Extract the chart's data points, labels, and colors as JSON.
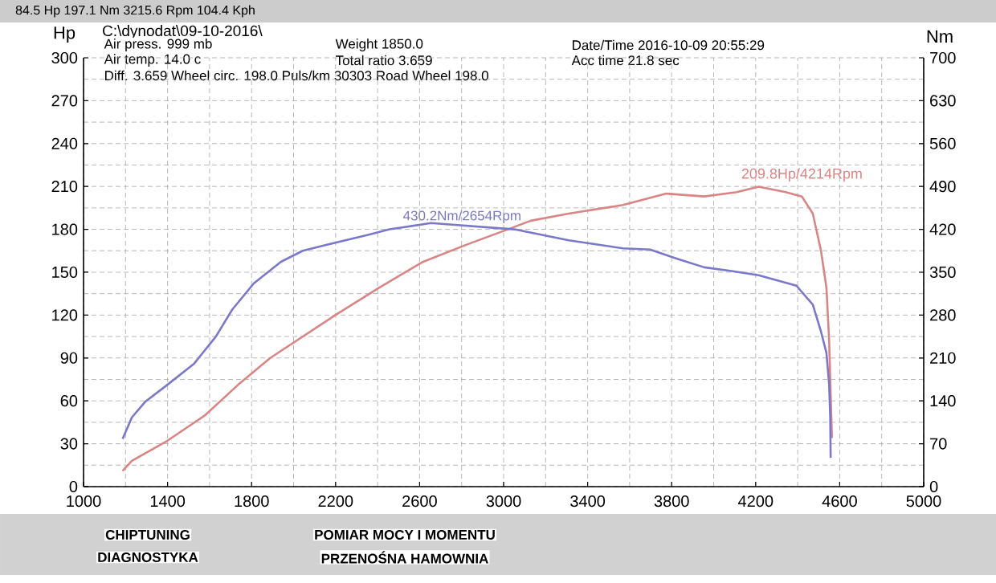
{
  "chart_data": {
    "type": "line",
    "title": "C:\\dynodat\\09-10-2016\\",
    "subtitle": "84.5 Hp 197.1 Nm 3215.6 Rpm 104.4 Kph",
    "ylabel": "Hp",
    "y2label": "Nm",
    "xlim": [
      1000,
      5000
    ],
    "xticks": [
      1000,
      1400,
      1800,
      2200,
      2600,
      3000,
      3400,
      3800,
      4200,
      4600,
      5000
    ],
    "ylim": [
      0,
      300
    ],
    "yticks": [
      0,
      30,
      60,
      90,
      120,
      150,
      180,
      210,
      240,
      270,
      300
    ],
    "y2lim": [
      0,
      700
    ],
    "y2ticks": [
      0,
      70,
      140,
      210,
      280,
      350,
      420,
      490,
      560,
      630,
      700
    ],
    "grid": true,
    "series": [
      {
        "color": "#d98585",
        "x": [
          1186,
          1230,
          1398,
          1579,
          1734,
          1889,
          2044,
          2199,
          2405,
          2612,
          2819,
          3002,
          3129,
          3310,
          3568,
          3775,
          3955,
          4110,
          4214,
          4343,
          4420,
          4472,
          4511,
          4537,
          4550,
          4557,
          4563
        ],
        "values": [
          11,
          18,
          32,
          50,
          71,
          90,
          105,
          120,
          139,
          157,
          169,
          179,
          186,
          191,
          197,
          205,
          203,
          206,
          209.8,
          206,
          203,
          191,
          165,
          139,
          101,
          64,
          34
        ]
      },
      {
        "color": "#7a78c8",
        "axis": "y2",
        "x": [
          1186,
          1230,
          1295,
          1398,
          1527,
          1630,
          1708,
          1811,
          1940,
          2044,
          2147,
          2354,
          2457,
          2535,
          2654,
          3051,
          3310,
          3568,
          3697,
          3826,
          3955,
          4085,
          4214,
          4394,
          4472,
          4511,
          4537,
          4550,
          4555,
          4557
        ],
        "values": [
          78,
          113,
          139,
          166,
          201,
          245,
          289,
          332,
          367,
          385,
          394,
          411,
          420,
          424,
          430.2,
          420,
          402,
          389,
          387,
          372,
          358,
          352,
          345,
          328,
          297,
          253,
          218,
          166,
          113,
          47
        ]
      }
    ],
    "annotations": [
      "Air press. 999 mb",
      "Air temp. 14.0 c",
      "Weight 1850.0",
      "Total ratio 3.659",
      "Date/Time 2016-10-09 20:55:29",
      "Acc time 21.8 sec",
      "Diff. 3.659 Wheel circ. 198.0 Puls/km 30303 Road Wheel 198.0",
      "CHIPTUNING",
      "DIAGNOSTYKA",
      "POMIAR MOCY I MOMENTU",
      "PRZENOŚNA HAMOWNIA",
      "430.2Nm/2654Rpm",
      {
        "text": "209.8Hp/4214Rpm",
        "x": 4214,
        "y": 209.8
      }
    ]
  }
}
